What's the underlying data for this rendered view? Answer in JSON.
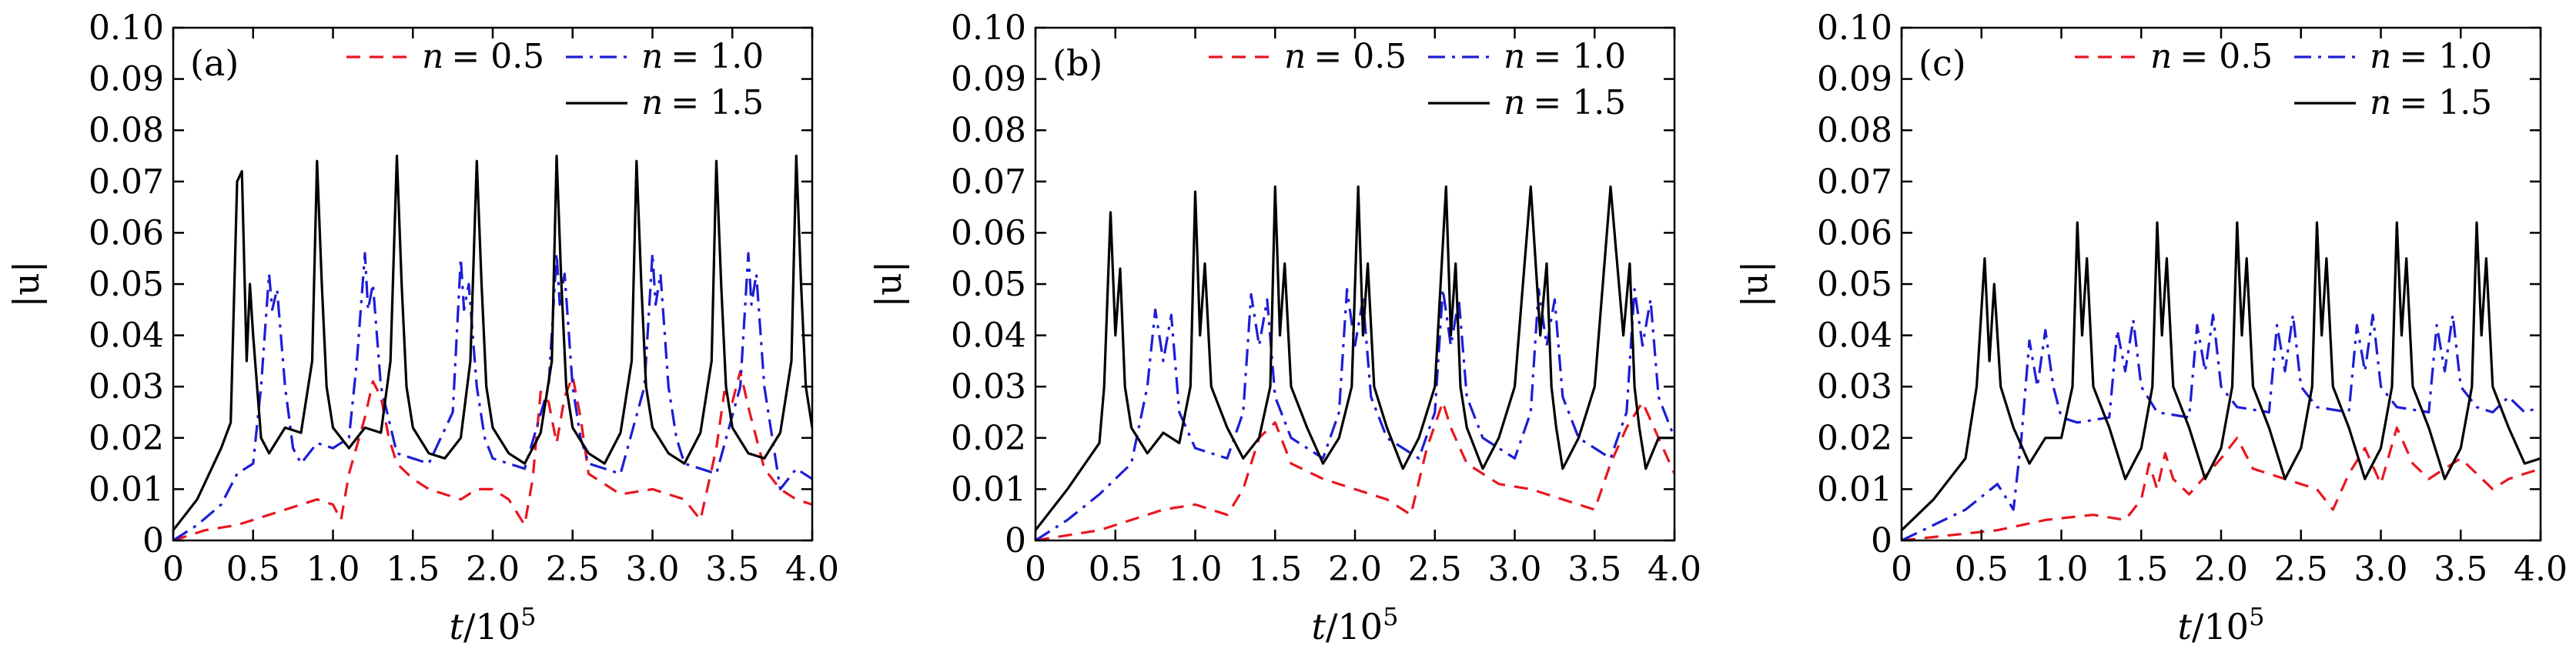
{
  "figure": {
    "panels": [
      "(a)",
      "(b)",
      "(c)"
    ]
  },
  "chart_data": [
    {
      "type": "line",
      "panel_label": "(a)",
      "xlabel_italic": "t",
      "xlabel_rest": "/10",
      "xlabel_exp": "5",
      "ylabel": "|u|",
      "xlim": [
        0,
        4.0
      ],
      "ylim": [
        0,
        0.1
      ],
      "xticks": [
        "0",
        "0.5",
        "1.0",
        "1.5",
        "2.0",
        "2.5",
        "3.0",
        "3.5",
        "4.0"
      ],
      "yticks": [
        "0",
        "0.01",
        "0.02",
        "0.03",
        "0.04",
        "0.05",
        "0.06",
        "0.07",
        "0.08",
        "0.09",
        "0.10"
      ],
      "legend_position": "top-right",
      "series": [
        {
          "name": "n = 0.5",
          "legend_eq": "= 0.5",
          "color": "#e8161f",
          "dash": "dashed",
          "x": [
            0,
            0.2,
            0.4,
            0.6,
            0.8,
            0.9,
            1.0,
            1.05,
            1.1,
            1.2,
            1.25,
            1.3,
            1.35,
            1.4,
            1.5,
            1.6,
            1.8,
            1.9,
            2.0,
            2.1,
            2.2,
            2.25,
            2.3,
            2.35,
            2.4,
            2.45,
            2.5,
            2.55,
            2.6,
            2.8,
            3.0,
            3.2,
            3.3,
            3.4,
            3.45,
            3.5,
            3.55,
            3.6,
            3.7,
            3.8,
            3.9,
            4.0
          ],
          "y": [
            0,
            0.002,
            0.003,
            0.005,
            0.007,
            0.008,
            0.007,
            0.004,
            0.013,
            0.024,
            0.031,
            0.028,
            0.02,
            0.015,
            0.012,
            0.01,
            0.008,
            0.01,
            0.01,
            0.008,
            0.003,
            0.012,
            0.029,
            0.027,
            0.019,
            0.028,
            0.032,
            0.024,
            0.013,
            0.009,
            0.01,
            0.008,
            0.004,
            0.018,
            0.029,
            0.027,
            0.033,
            0.026,
            0.014,
            0.01,
            0.008,
            0.007
          ]
        },
        {
          "name": "n = 1.0",
          "legend_eq": "= 1.0",
          "color": "#1d1dd6",
          "dash": "dashdot",
          "x": [
            0,
            0.15,
            0.3,
            0.4,
            0.5,
            0.55,
            0.6,
            0.62,
            0.65,
            0.7,
            0.75,
            0.8,
            0.9,
            1.0,
            1.1,
            1.15,
            1.2,
            1.22,
            1.25,
            1.3,
            1.4,
            1.6,
            1.75,
            1.8,
            1.82,
            1.85,
            1.9,
            1.95,
            2.0,
            2.2,
            2.35,
            2.4,
            2.42,
            2.45,
            2.5,
            2.55,
            2.6,
            2.8,
            2.95,
            3.0,
            3.02,
            3.05,
            3.1,
            3.15,
            3.2,
            3.4,
            3.55,
            3.6,
            3.62,
            3.65,
            3.7,
            3.75,
            3.8,
            3.9,
            4.0
          ],
          "y": [
            0,
            0.003,
            0.007,
            0.013,
            0.015,
            0.03,
            0.052,
            0.045,
            0.049,
            0.03,
            0.018,
            0.015,
            0.019,
            0.018,
            0.02,
            0.035,
            0.056,
            0.045,
            0.05,
            0.03,
            0.017,
            0.015,
            0.025,
            0.055,
            0.045,
            0.05,
            0.03,
            0.02,
            0.016,
            0.014,
            0.03,
            0.056,
            0.046,
            0.052,
            0.03,
            0.02,
            0.015,
            0.013,
            0.03,
            0.056,
            0.046,
            0.052,
            0.03,
            0.02,
            0.015,
            0.013,
            0.03,
            0.056,
            0.046,
            0.052,
            0.03,
            0.02,
            0.01,
            0.014,
            0.012
          ]
        },
        {
          "name": "n = 1.5",
          "legend_eq": "= 1.5",
          "color": "#000000",
          "dash": "solid",
          "x": [
            0,
            0.15,
            0.3,
            0.36,
            0.4,
            0.43,
            0.46,
            0.48,
            0.5,
            0.55,
            0.6,
            0.7,
            0.8,
            0.87,
            0.9,
            0.93,
            0.96,
            1.0,
            1.1,
            1.2,
            1.3,
            1.36,
            1.4,
            1.43,
            1.46,
            1.5,
            1.6,
            1.7,
            1.8,
            1.86,
            1.9,
            1.93,
            1.96,
            2.0,
            2.1,
            2.2,
            2.3,
            2.37,
            2.4,
            2.43,
            2.46,
            2.5,
            2.6,
            2.7,
            2.8,
            2.87,
            2.9,
            2.93,
            2.96,
            3.0,
            3.1,
            3.2,
            3.3,
            3.37,
            3.4,
            3.43,
            3.46,
            3.5,
            3.6,
            3.7,
            3.8,
            3.87,
            3.9,
            3.93,
            3.96,
            4.0
          ],
          "y": [
            0.002,
            0.008,
            0.018,
            0.023,
            0.07,
            0.072,
            0.035,
            0.05,
            0.04,
            0.02,
            0.017,
            0.022,
            0.021,
            0.035,
            0.074,
            0.05,
            0.03,
            0.022,
            0.018,
            0.022,
            0.021,
            0.035,
            0.075,
            0.05,
            0.03,
            0.022,
            0.017,
            0.016,
            0.02,
            0.035,
            0.074,
            0.05,
            0.03,
            0.022,
            0.017,
            0.015,
            0.021,
            0.035,
            0.075,
            0.05,
            0.03,
            0.022,
            0.017,
            0.015,
            0.021,
            0.035,
            0.074,
            0.05,
            0.03,
            0.022,
            0.017,
            0.015,
            0.021,
            0.035,
            0.074,
            0.05,
            0.03,
            0.022,
            0.017,
            0.016,
            0.021,
            0.035,
            0.075,
            0.05,
            0.03,
            0.022
          ]
        }
      ]
    },
    {
      "type": "line",
      "panel_label": "(b)",
      "xlabel_italic": "t",
      "xlabel_rest": "/10",
      "xlabel_exp": "5",
      "ylabel": "|u|",
      "xlim": [
        0,
        4.0
      ],
      "ylim": [
        0,
        0.1
      ],
      "xticks": [
        "0",
        "0.5",
        "1.0",
        "1.5",
        "2.0",
        "2.5",
        "3.0",
        "3.5",
        "4.0"
      ],
      "yticks": [
        "0",
        "0.01",
        "0.02",
        "0.03",
        "0.04",
        "0.05",
        "0.06",
        "0.07",
        "0.08",
        "0.09",
        "0.10"
      ],
      "legend_position": "top-right",
      "series": [
        {
          "name": "n = 0.5",
          "legend_eq": "= 0.5",
          "color": "#e8161f",
          "dash": "dashed",
          "x": [
            0,
            0.2,
            0.4,
            0.6,
            0.8,
            1.0,
            1.2,
            1.3,
            1.4,
            1.5,
            1.6,
            1.8,
            2.0,
            2.2,
            2.35,
            2.45,
            2.55,
            2.6,
            2.7,
            2.9,
            3.1,
            3.3,
            3.5,
            3.6,
            3.7,
            3.8,
            3.9,
            4.0
          ],
          "y": [
            0,
            0.001,
            0.002,
            0.004,
            0.006,
            0.007,
            0.005,
            0.01,
            0.02,
            0.023,
            0.015,
            0.012,
            0.01,
            0.008,
            0.005,
            0.018,
            0.027,
            0.022,
            0.015,
            0.011,
            0.01,
            0.008,
            0.006,
            0.015,
            0.022,
            0.027,
            0.02,
            0.013
          ]
        },
        {
          "name": "n = 1.0",
          "legend_eq": "= 1.0",
          "color": "#1d1dd6",
          "dash": "dashdot",
          "x": [
            0,
            0.2,
            0.4,
            0.5,
            0.6,
            0.7,
            0.75,
            0.8,
            0.85,
            0.9,
            1.0,
            1.2,
            1.3,
            1.35,
            1.4,
            1.45,
            1.5,
            1.6,
            1.8,
            1.9,
            1.95,
            2.0,
            2.05,
            2.1,
            2.2,
            2.4,
            2.5,
            2.55,
            2.6,
            2.65,
            2.7,
            2.8,
            3.0,
            3.1,
            3.15,
            3.2,
            3.25,
            3.3,
            3.4,
            3.6,
            3.7,
            3.75,
            3.8,
            3.85,
            3.9,
            4.0
          ],
          "y": [
            0,
            0.004,
            0.009,
            0.012,
            0.015,
            0.03,
            0.045,
            0.035,
            0.044,
            0.025,
            0.018,
            0.016,
            0.025,
            0.048,
            0.038,
            0.047,
            0.028,
            0.02,
            0.016,
            0.025,
            0.049,
            0.038,
            0.047,
            0.028,
            0.02,
            0.016,
            0.025,
            0.049,
            0.038,
            0.047,
            0.028,
            0.02,
            0.016,
            0.025,
            0.049,
            0.038,
            0.047,
            0.028,
            0.02,
            0.016,
            0.025,
            0.049,
            0.038,
            0.047,
            0.028,
            0.02
          ]
        },
        {
          "name": "n = 1.5",
          "legend_eq": "= 1.5",
          "color": "#000000",
          "dash": "solid",
          "x": [
            0,
            0.2,
            0.4,
            0.43,
            0.47,
            0.5,
            0.53,
            0.56,
            0.6,
            0.7,
            0.8,
            0.9,
            0.97,
            1.0,
            1.03,
            1.06,
            1.1,
            1.2,
            1.3,
            1.4,
            1.47,
            1.5,
            1.53,
            1.56,
            1.6,
            1.7,
            1.8,
            1.9,
            1.98,
            2.02,
            2.05,
            2.08,
            2.12,
            2.2,
            2.3,
            2.4,
            2.5,
            2.57,
            2.6,
            2.63,
            2.66,
            2.7,
            2.8,
            2.9,
            3.0,
            3.1,
            3.16,
            3.2,
            3.23,
            3.26,
            3.3,
            3.4,
            3.5,
            3.6,
            3.68,
            3.72,
            3.75,
            3.78,
            3.82,
            3.9,
            4.0
          ],
          "y": [
            0.002,
            0.01,
            0.019,
            0.03,
            0.064,
            0.04,
            0.053,
            0.03,
            0.022,
            0.017,
            0.021,
            0.019,
            0.03,
            0.068,
            0.04,
            0.054,
            0.03,
            0.022,
            0.016,
            0.02,
            0.03,
            0.069,
            0.04,
            0.054,
            0.03,
            0.022,
            0.015,
            0.02,
            0.03,
            0.069,
            0.04,
            0.054,
            0.03,
            0.022,
            0.014,
            0.02,
            0.03,
            0.069,
            0.04,
            0.054,
            0.03,
            0.022,
            0.014,
            0.02,
            0.03,
            0.069,
            0.04,
            0.054,
            0.03,
            0.022,
            0.014,
            0.02,
            0.03,
            0.069,
            0.04,
            0.054,
            0.03,
            0.022,
            0.014,
            0.02,
            0.02
          ]
        }
      ]
    },
    {
      "type": "line",
      "panel_label": "(c)",
      "xlabel_italic": "t",
      "xlabel_rest": "/10",
      "xlabel_exp": "5",
      "ylabel": "|u|",
      "xlim": [
        0,
        4.0
      ],
      "ylim": [
        0,
        0.1
      ],
      "xticks": [
        "0",
        "0.5",
        "1.0",
        "1.5",
        "2.0",
        "2.5",
        "3.0",
        "3.5",
        "4.0"
      ],
      "yticks": [
        "0",
        "0.01",
        "0.02",
        "0.03",
        "0.04",
        "0.05",
        "0.06",
        "0.07",
        "0.08",
        "0.09",
        "0.10"
      ],
      "legend_position": "top-right",
      "series": [
        {
          "name": "n = 0.5",
          "legend_eq": "= 0.5",
          "color": "#e8161f",
          "dash": "dashed",
          "x": [
            0,
            0.3,
            0.6,
            0.9,
            1.2,
            1.4,
            1.5,
            1.55,
            1.6,
            1.65,
            1.7,
            1.8,
            2.0,
            2.1,
            2.2,
            2.4,
            2.6,
            2.7,
            2.8,
            2.9,
            3.0,
            3.1,
            3.2,
            3.3,
            3.5,
            3.6,
            3.7,
            3.8,
            3.9,
            4.0
          ],
          "y": [
            0,
            0.001,
            0.002,
            0.004,
            0.005,
            0.004,
            0.008,
            0.015,
            0.01,
            0.017,
            0.012,
            0.009,
            0.016,
            0.02,
            0.014,
            0.012,
            0.01,
            0.006,
            0.013,
            0.018,
            0.011,
            0.022,
            0.015,
            0.012,
            0.016,
            0.013,
            0.01,
            0.012,
            0.013,
            0.014
          ]
        },
        {
          "name": "n = 1.0",
          "legend_eq": "= 1.0",
          "color": "#1d1dd6",
          "dash": "dashdot",
          "x": [
            0,
            0.2,
            0.4,
            0.6,
            0.7,
            0.75,
            0.8,
            0.85,
            0.9,
            0.95,
            1.0,
            1.1,
            1.3,
            1.35,
            1.4,
            1.45,
            1.5,
            1.6,
            1.8,
            1.85,
            1.9,
            1.95,
            2.0,
            2.1,
            2.3,
            2.35,
            2.4,
            2.45,
            2.5,
            2.6,
            2.8,
            2.85,
            2.9,
            2.95,
            3.0,
            3.1,
            3.3,
            3.35,
            3.4,
            3.45,
            3.5,
            3.6,
            3.7,
            3.8,
            3.9,
            4.0
          ],
          "y": [
            0,
            0.003,
            0.006,
            0.011,
            0.006,
            0.02,
            0.039,
            0.03,
            0.041,
            0.03,
            0.024,
            0.023,
            0.024,
            0.041,
            0.033,
            0.043,
            0.03,
            0.025,
            0.024,
            0.042,
            0.033,
            0.044,
            0.03,
            0.026,
            0.025,
            0.042,
            0.033,
            0.044,
            0.03,
            0.026,
            0.025,
            0.042,
            0.033,
            0.044,
            0.03,
            0.026,
            0.025,
            0.042,
            0.033,
            0.044,
            0.03,
            0.026,
            0.025,
            0.028,
            0.025,
            0.026
          ]
        },
        {
          "name": "n = 1.5",
          "legend_eq": "= 1.5",
          "color": "#000000",
          "dash": "solid",
          "x": [
            0,
            0.2,
            0.4,
            0.47,
            0.52,
            0.55,
            0.58,
            0.62,
            0.7,
            0.8,
            0.9,
            1.0,
            1.07,
            1.1,
            1.13,
            1.16,
            1.2,
            1.3,
            1.4,
            1.5,
            1.57,
            1.6,
            1.63,
            1.66,
            1.7,
            1.8,
            1.9,
            2.0,
            2.07,
            2.1,
            2.13,
            2.16,
            2.2,
            2.3,
            2.4,
            2.5,
            2.57,
            2.6,
            2.63,
            2.66,
            2.7,
            2.8,
            2.9,
            3.0,
            3.07,
            3.1,
            3.13,
            3.16,
            3.2,
            3.3,
            3.4,
            3.5,
            3.57,
            3.6,
            3.63,
            3.66,
            3.7,
            3.8,
            3.9,
            4.0
          ],
          "y": [
            0.002,
            0.008,
            0.016,
            0.03,
            0.055,
            0.035,
            0.05,
            0.03,
            0.022,
            0.015,
            0.02,
            0.02,
            0.03,
            0.062,
            0.04,
            0.055,
            0.03,
            0.022,
            0.012,
            0.018,
            0.03,
            0.062,
            0.04,
            0.055,
            0.03,
            0.022,
            0.012,
            0.018,
            0.03,
            0.062,
            0.04,
            0.055,
            0.03,
            0.022,
            0.012,
            0.018,
            0.03,
            0.062,
            0.04,
            0.055,
            0.03,
            0.022,
            0.012,
            0.018,
            0.03,
            0.062,
            0.04,
            0.055,
            0.03,
            0.022,
            0.012,
            0.018,
            0.03,
            0.062,
            0.04,
            0.055,
            0.03,
            0.022,
            0.015,
            0.016
          ]
        }
      ]
    }
  ]
}
